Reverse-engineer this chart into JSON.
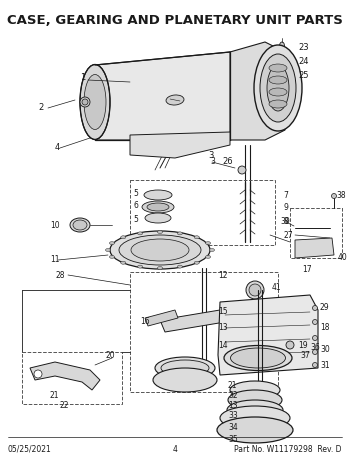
{
  "title": "CASE, GEARING AND PLANETARY UNIT PARTS",
  "footer_left": "05/25/2021",
  "footer_center": "4",
  "footer_right": "Part No. W11179298  Rev. D",
  "bg_color": "#ffffff",
  "line_color": "#1a1a1a",
  "fig_width": 3.5,
  "fig_height": 4.53,
  "dpi": 100
}
